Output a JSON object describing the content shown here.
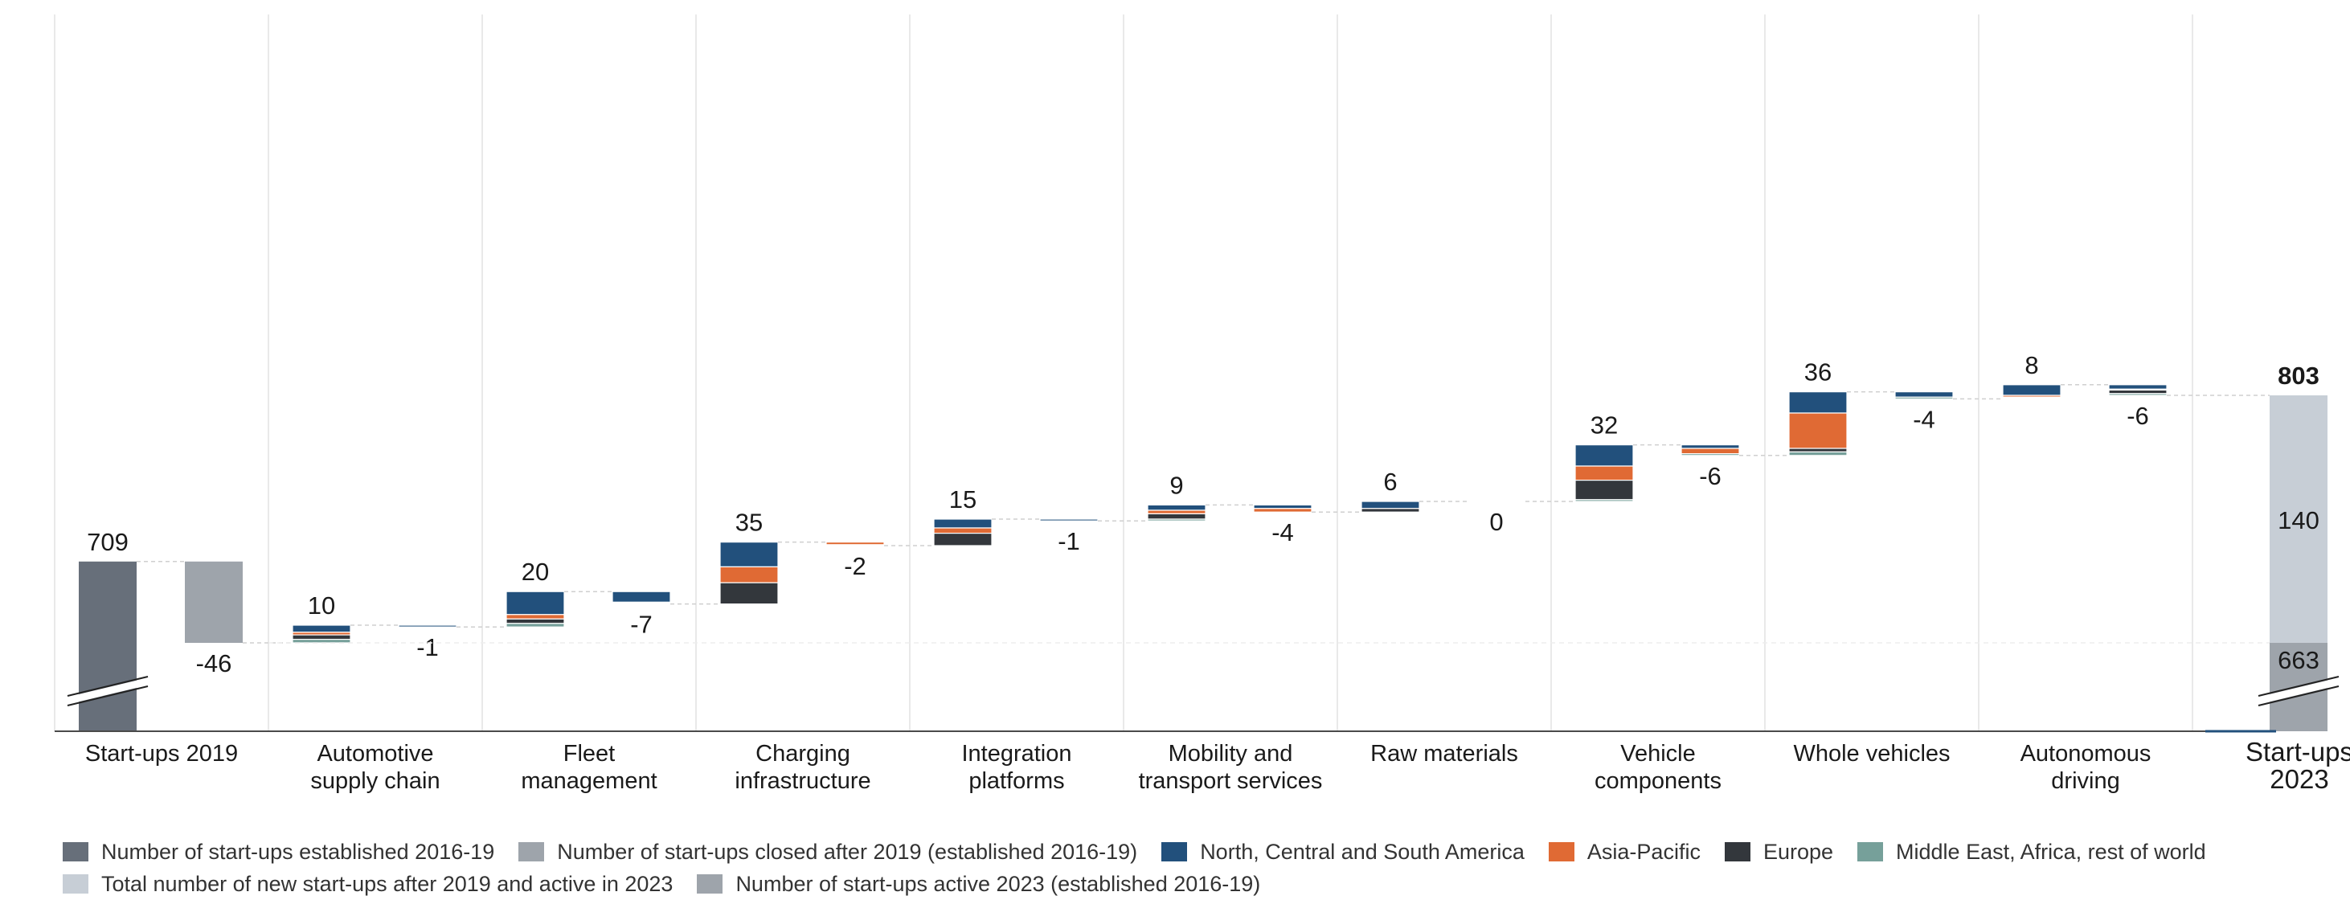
{
  "chart_data": {
    "type": "bar",
    "subtype": "waterfall",
    "title": "",
    "xlabel": "",
    "ylabel": "",
    "axis_break": true,
    "categories": [
      "Start-ups 2019",
      "Automotive supply chain",
      "Fleet management",
      "Charging infrastructure",
      "Integration platforms",
      "Mobility and transport services",
      "Raw materials",
      "Vehicle components",
      "Whole vehicles",
      "Autonomous driving",
      "Start-ups 2023"
    ],
    "category_label_lines": [
      [
        "Start-ups 2019"
      ],
      [
        "Automotive",
        "supply chain"
      ],
      [
        "Fleet",
        "management"
      ],
      [
        "Charging",
        "infrastructure"
      ],
      [
        "Integration",
        "platforms"
      ],
      [
        "Mobility and",
        "transport services"
      ],
      [
        "Raw materials"
      ],
      [
        "Vehicle",
        "components"
      ],
      [
        "Whole vehicles"
      ],
      [
        "Autonomous",
        "driving"
      ],
      [
        "Start-ups",
        "2023"
      ]
    ],
    "start": {
      "category": "Start-ups 2019",
      "established": 709,
      "closed_label": "-46",
      "closed": 46
    },
    "end": {
      "category": "Start-ups 2023",
      "total": 803,
      "total_label": "803",
      "new_active": 140,
      "new_active_label": "140",
      "old_active": 663,
      "old_active_label": "663"
    },
    "segments": [
      {
        "category": "Automotive supply chain",
        "new": 10,
        "new_label": "10",
        "new_split": [
          4,
          1.5,
          2.5,
          2
        ],
        "closed": 1,
        "closed_label": "-1",
        "closed_split": [
          1,
          0,
          0,
          0
        ]
      },
      {
        "category": "Fleet management",
        "new": 20,
        "new_label": "20",
        "new_split": [
          13,
          2.5,
          2.5,
          2
        ],
        "closed": 7,
        "closed_label": "-7",
        "closed_split": [
          6,
          0.5,
          0,
          0.5
        ]
      },
      {
        "category": "Charging infrastructure",
        "new": 35,
        "new_label": "35",
        "new_split": [
          14,
          9,
          12,
          0
        ],
        "closed": 2,
        "closed_label": "-2",
        "closed_split": [
          0,
          1.5,
          0,
          0.5
        ]
      },
      {
        "category": "Integration platforms",
        "new": 15,
        "new_label": "15",
        "new_split": [
          5,
          3,
          7,
          0
        ],
        "closed": 1,
        "closed_label": "-1",
        "closed_split": [
          1,
          0,
          0,
          0
        ]
      },
      {
        "category": "Mobility and transport services",
        "new": 9,
        "new_label": "9",
        "new_split": [
          3,
          2,
          3,
          1
        ],
        "closed": 4,
        "closed_label": "-4",
        "closed_split": [
          2,
          2,
          0,
          0
        ]
      },
      {
        "category": "Raw materials",
        "new": 6,
        "new_label": "6",
        "new_split": [
          4,
          0,
          2,
          0
        ],
        "closed": 0,
        "closed_label": "0",
        "closed_split": [
          0,
          0,
          0,
          0
        ]
      },
      {
        "category": "Vehicle components",
        "new": 32,
        "new_label": "32",
        "new_split": [
          12,
          8,
          11,
          1
        ],
        "closed": 6,
        "closed_label": "-6",
        "closed_split": [
          2,
          3,
          0,
          1
        ]
      },
      {
        "category": "Whole vehicles",
        "new": 36,
        "new_label": "36",
        "new_split": [
          12,
          20,
          2,
          2
        ],
        "closed": 4,
        "closed_label": "-4",
        "closed_split": [
          3,
          0,
          0,
          1
        ]
      },
      {
        "category": "Autonomous driving",
        "new": 8,
        "new_label": "8",
        "new_split": [
          6,
          1,
          0.5,
          0.5
        ],
        "closed": 6,
        "closed_label": "-6",
        "closed_split": [
          2.5,
          0.5,
          2,
          1
        ]
      }
    ],
    "region_series": [
      "North, Central and South America",
      "Asia-Pacific",
      "Europe",
      "Middle East, Africa, rest of world"
    ],
    "legend": {
      "placement": "bottom",
      "rows": [
        [
          {
            "label": "Number of start-ups established 2016-19",
            "color": "#676f7a"
          },
          {
            "label": "Number of start-ups closed after 2019 (established 2016-19)",
            "color": "#9ea4ab"
          },
          {
            "label": "North, Central and South America",
            "color": "#22507c"
          },
          {
            "label": "Asia-Pacific",
            "color": "#e06a34"
          },
          {
            "label": "Europe",
            "color": "#33373c"
          },
          {
            "label": "Middle East, Africa, rest of world",
            "color": "#76a09a"
          }
        ],
        [
          {
            "label": "Total number of new start-ups after 2019 and active in 2023",
            "color": "#c7ced6"
          },
          {
            "label": "Number of start-ups active 2023 (established 2016-19)",
            "color": "#9ea4ab"
          }
        ]
      ]
    },
    "colors": {
      "established": "#676f7a",
      "closed_grey": "#9ea4ab",
      "americas": "#22507c",
      "asia_pacific": "#e06a34",
      "europe": "#33373c",
      "mea": "#76a09a",
      "new_total": "#c7ced6",
      "old_active": "#9ea4ab",
      "grid": "#e2e2e2",
      "baseline": "#4a4a4a",
      "connector": "#cfcfcf"
    }
  }
}
